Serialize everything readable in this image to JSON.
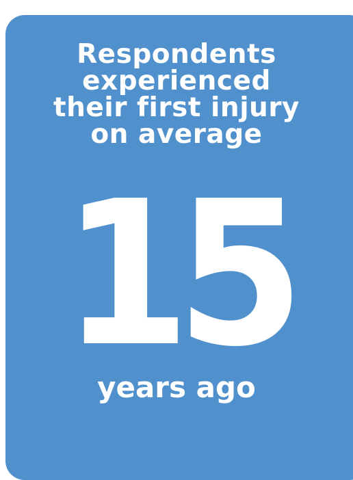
{
  "card": {
    "background": "#5090cc",
    "text_color": "#ffffff"
  },
  "headline": {
    "lines": [
      "Respondents",
      "experienced",
      "their first injury",
      "on average"
    ]
  },
  "stat": {
    "value": "15",
    "caption": "years ago"
  }
}
